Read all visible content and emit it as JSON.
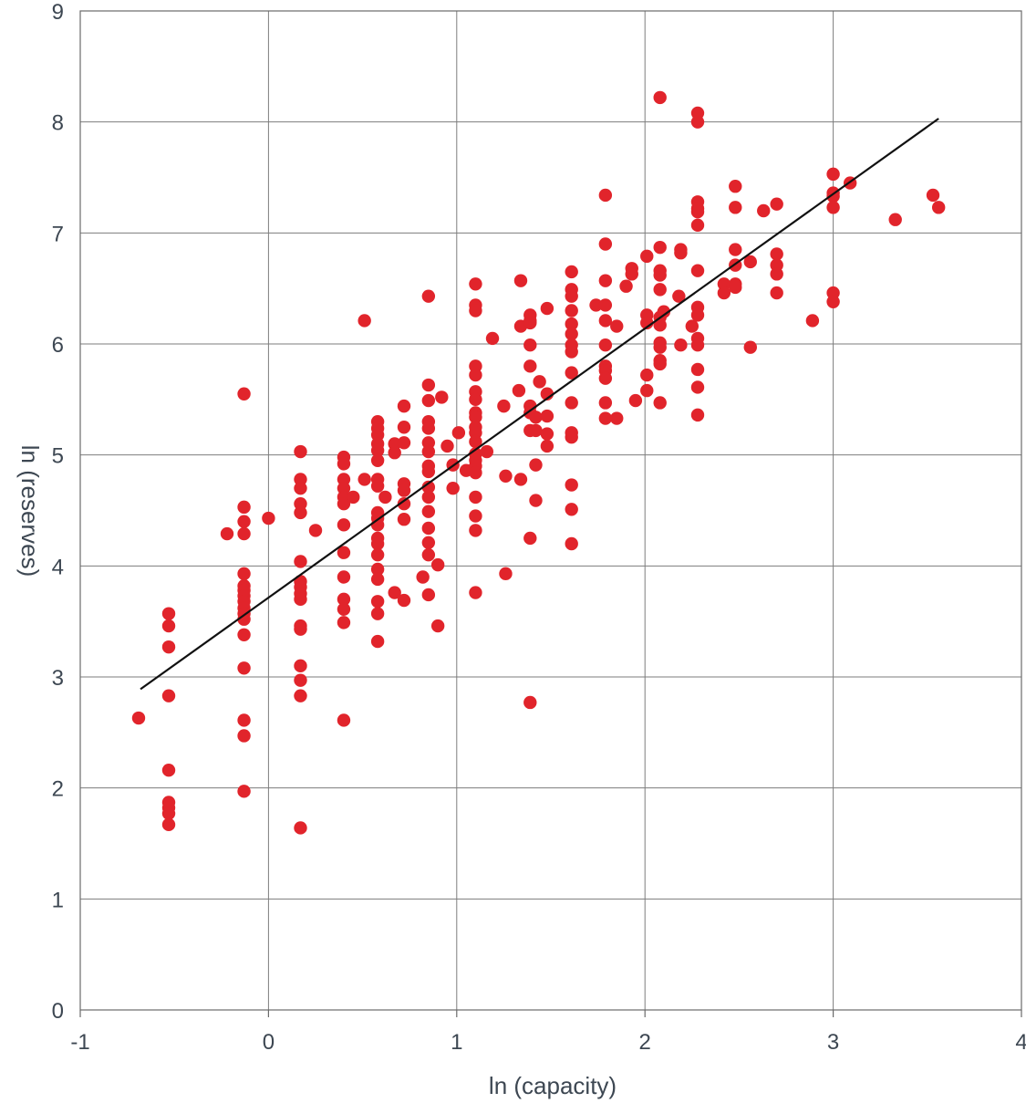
{
  "chart_data": {
    "type": "scatter",
    "xlabel": "ln (capacity)",
    "ylabel": "ln (reserves)",
    "xlim": [
      -1,
      4
    ],
    "ylim": [
      0,
      9
    ],
    "xticks": [
      "-1",
      "0",
      "1",
      "2",
      "3",
      "4"
    ],
    "yticks": [
      "0",
      "1",
      "2",
      "3",
      "4",
      "5",
      "6",
      "7",
      "8",
      "9"
    ],
    "grid": true,
    "legend": "none",
    "colors": {
      "points": "#e1242b",
      "fit_line": "#111111",
      "grid": "#7d7d7d"
    },
    "fit_line": {
      "x": [
        -0.68,
        3.56
      ],
      "y": [
        2.89,
        8.03
      ]
    },
    "points": [
      [
        -0.69,
        2.63
      ],
      [
        -0.53,
        3.57
      ],
      [
        -0.53,
        3.46
      ],
      [
        -0.53,
        3.27
      ],
      [
        -0.53,
        2.83
      ],
      [
        -0.53,
        2.16
      ],
      [
        -0.53,
        1.87
      ],
      [
        -0.53,
        1.82
      ],
      [
        -0.53,
        1.77
      ],
      [
        -0.53,
        1.67
      ],
      [
        -0.22,
        4.29
      ],
      [
        -0.13,
        5.55
      ],
      [
        -0.13,
        4.53
      ],
      [
        -0.13,
        4.4
      ],
      [
        -0.13,
        4.29
      ],
      [
        -0.13,
        3.93
      ],
      [
        -0.13,
        3.82
      ],
      [
        -0.13,
        3.78
      ],
      [
        -0.13,
        3.73
      ],
      [
        -0.13,
        3.68
      ],
      [
        -0.13,
        3.62
      ],
      [
        -0.13,
        3.57
      ],
      [
        -0.13,
        3.52
      ],
      [
        -0.13,
        3.38
      ],
      [
        -0.13,
        3.08
      ],
      [
        -0.13,
        2.61
      ],
      [
        -0.13,
        2.47
      ],
      [
        -0.13,
        1.97
      ],
      [
        0.0,
        4.43
      ],
      [
        0.17,
        5.03
      ],
      [
        0.17,
        4.78
      ],
      [
        0.17,
        4.7
      ],
      [
        0.17,
        4.56
      ],
      [
        0.17,
        4.48
      ],
      [
        0.17,
        4.04
      ],
      [
        0.17,
        3.86
      ],
      [
        0.17,
        3.81
      ],
      [
        0.17,
        3.75
      ],
      [
        0.17,
        3.7
      ],
      [
        0.17,
        3.46
      ],
      [
        0.17,
        3.43
      ],
      [
        0.17,
        3.1
      ],
      [
        0.17,
        2.97
      ],
      [
        0.17,
        2.83
      ],
      [
        0.17,
        1.64
      ],
      [
        0.25,
        4.32
      ],
      [
        0.4,
        4.98
      ],
      [
        0.4,
        4.92
      ],
      [
        0.4,
        4.78
      ],
      [
        0.4,
        4.7
      ],
      [
        0.4,
        4.62
      ],
      [
        0.4,
        4.56
      ],
      [
        0.4,
        4.37
      ],
      [
        0.4,
        4.12
      ],
      [
        0.4,
        3.9
      ],
      [
        0.4,
        3.7
      ],
      [
        0.4,
        3.61
      ],
      [
        0.4,
        3.49
      ],
      [
        0.4,
        2.61
      ],
      [
        0.45,
        4.62
      ],
      [
        0.51,
        4.78
      ],
      [
        0.51,
        6.21
      ],
      [
        0.58,
        5.3
      ],
      [
        0.58,
        5.24
      ],
      [
        0.58,
        5.18
      ],
      [
        0.58,
        5.1
      ],
      [
        0.58,
        5.04
      ],
      [
        0.58,
        4.95
      ],
      [
        0.58,
        4.78
      ],
      [
        0.58,
        4.72
      ],
      [
        0.58,
        4.48
      ],
      [
        0.58,
        4.43
      ],
      [
        0.58,
        4.37
      ],
      [
        0.58,
        4.25
      ],
      [
        0.58,
        4.2
      ],
      [
        0.58,
        4.1
      ],
      [
        0.58,
        3.97
      ],
      [
        0.58,
        3.88
      ],
      [
        0.58,
        3.68
      ],
      [
        0.58,
        3.57
      ],
      [
        0.58,
        3.32
      ],
      [
        0.62,
        4.62
      ],
      [
        0.67,
        5.1
      ],
      [
        0.67,
        5.02
      ],
      [
        0.67,
        3.76
      ],
      [
        0.72,
        5.44
      ],
      [
        0.72,
        5.25
      ],
      [
        0.72,
        5.11
      ],
      [
        0.72,
        4.74
      ],
      [
        0.72,
        4.68
      ],
      [
        0.72,
        4.56
      ],
      [
        0.72,
        4.42
      ],
      [
        0.72,
        3.69
      ],
      [
        0.82,
        3.9
      ],
      [
        0.85,
        6.43
      ],
      [
        0.85,
        5.63
      ],
      [
        0.85,
        5.49
      ],
      [
        0.85,
        5.3
      ],
      [
        0.85,
        5.24
      ],
      [
        0.85,
        5.11
      ],
      [
        0.85,
        5.03
      ],
      [
        0.85,
        4.9
      ],
      [
        0.85,
        4.85
      ],
      [
        0.85,
        4.71
      ],
      [
        0.85,
        4.62
      ],
      [
        0.85,
        4.49
      ],
      [
        0.85,
        4.34
      ],
      [
        0.85,
        4.21
      ],
      [
        0.85,
        4.1
      ],
      [
        0.85,
        3.74
      ],
      [
        0.9,
        3.46
      ],
      [
        0.9,
        4.01
      ],
      [
        0.92,
        5.52
      ],
      [
        0.95,
        5.08
      ],
      [
        0.98,
        4.91
      ],
      [
        0.98,
        4.7
      ],
      [
        1.01,
        5.2
      ],
      [
        1.05,
        4.86
      ],
      [
        1.1,
        6.54
      ],
      [
        1.1,
        6.35
      ],
      [
        1.1,
        6.3
      ],
      [
        1.1,
        5.8
      ],
      [
        1.1,
        5.72
      ],
      [
        1.1,
        5.57
      ],
      [
        1.1,
        5.5
      ],
      [
        1.1,
        5.38
      ],
      [
        1.1,
        5.34
      ],
      [
        1.1,
        5.25
      ],
      [
        1.1,
        5.2
      ],
      [
        1.1,
        5.12
      ],
      [
        1.1,
        5.01
      ],
      [
        1.1,
        4.95
      ],
      [
        1.1,
        4.9
      ],
      [
        1.1,
        4.84
      ],
      [
        1.1,
        4.62
      ],
      [
        1.1,
        4.45
      ],
      [
        1.1,
        4.32
      ],
      [
        1.1,
        3.76
      ],
      [
        1.16,
        5.03
      ],
      [
        1.19,
        6.05
      ],
      [
        1.25,
        5.44
      ],
      [
        1.26,
        4.81
      ],
      [
        1.26,
        3.93
      ],
      [
        1.33,
        5.58
      ],
      [
        1.34,
        6.57
      ],
      [
        1.34,
        6.16
      ],
      [
        1.34,
        4.78
      ],
      [
        1.39,
        6.26
      ],
      [
        1.39,
        6.21
      ],
      [
        1.39,
        6.19
      ],
      [
        1.39,
        5.99
      ],
      [
        1.39,
        5.8
      ],
      [
        1.39,
        5.44
      ],
      [
        1.39,
        5.38
      ],
      [
        1.39,
        5.22
      ],
      [
        1.39,
        4.25
      ],
      [
        1.39,
        2.77
      ],
      [
        1.42,
        5.34
      ],
      [
        1.42,
        5.22
      ],
      [
        1.42,
        4.91
      ],
      [
        1.42,
        4.59
      ],
      [
        1.44,
        5.66
      ],
      [
        1.48,
        5.55
      ],
      [
        1.48,
        5.35
      ],
      [
        1.48,
        5.19
      ],
      [
        1.48,
        5.08
      ],
      [
        1.48,
        6.32
      ],
      [
        1.61,
        6.65
      ],
      [
        1.61,
        6.49
      ],
      [
        1.61,
        6.43
      ],
      [
        1.61,
        6.3
      ],
      [
        1.61,
        6.18
      ],
      [
        1.61,
        6.09
      ],
      [
        1.61,
        5.99
      ],
      [
        1.61,
        5.93
      ],
      [
        1.61,
        5.74
      ],
      [
        1.61,
        5.47
      ],
      [
        1.61,
        5.2
      ],
      [
        1.61,
        5.16
      ],
      [
        1.61,
        4.73
      ],
      [
        1.61,
        4.51
      ],
      [
        1.61,
        4.2
      ],
      [
        1.74,
        6.35
      ],
      [
        1.79,
        7.34
      ],
      [
        1.79,
        6.9
      ],
      [
        1.79,
        6.57
      ],
      [
        1.79,
        6.35
      ],
      [
        1.79,
        6.21
      ],
      [
        1.79,
        5.99
      ],
      [
        1.79,
        5.8
      ],
      [
        1.79,
        5.76
      ],
      [
        1.79,
        5.69
      ],
      [
        1.79,
        5.47
      ],
      [
        1.79,
        5.33
      ],
      [
        1.85,
        6.16
      ],
      [
        1.85,
        5.33
      ],
      [
        1.9,
        6.52
      ],
      [
        1.93,
        6.68
      ],
      [
        1.93,
        6.63
      ],
      [
        1.95,
        5.49
      ],
      [
        2.01,
        6.79
      ],
      [
        2.01,
        6.26
      ],
      [
        2.01,
        6.19
      ],
      [
        2.01,
        5.72
      ],
      [
        2.01,
        5.58
      ],
      [
        2.08,
        8.22
      ],
      [
        2.08,
        6.87
      ],
      [
        2.08,
        6.66
      ],
      [
        2.08,
        6.62
      ],
      [
        2.08,
        6.49
      ],
      [
        2.08,
        6.24
      ],
      [
        2.08,
        6.17
      ],
      [
        2.08,
        6.01
      ],
      [
        2.08,
        5.97
      ],
      [
        2.08,
        5.85
      ],
      [
        2.08,
        5.82
      ],
      [
        2.08,
        5.47
      ],
      [
        2.1,
        6.29
      ],
      [
        2.18,
        6.43
      ],
      [
        2.19,
        6.85
      ],
      [
        2.19,
        6.82
      ],
      [
        2.19,
        5.99
      ],
      [
        2.25,
        6.16
      ],
      [
        2.28,
        8.08
      ],
      [
        2.28,
        8.0
      ],
      [
        2.28,
        7.28
      ],
      [
        2.28,
        7.22
      ],
      [
        2.28,
        7.19
      ],
      [
        2.28,
        7.07
      ],
      [
        2.28,
        6.66
      ],
      [
        2.28,
        6.33
      ],
      [
        2.28,
        6.26
      ],
      [
        2.28,
        6.05
      ],
      [
        2.28,
        5.99
      ],
      [
        2.28,
        5.77
      ],
      [
        2.28,
        5.61
      ],
      [
        2.28,
        5.36
      ],
      [
        2.42,
        6.54
      ],
      [
        2.42,
        6.46
      ],
      [
        2.48,
        7.42
      ],
      [
        2.48,
        7.23
      ],
      [
        2.48,
        6.85
      ],
      [
        2.48,
        6.71
      ],
      [
        2.48,
        6.54
      ],
      [
        2.48,
        6.51
      ],
      [
        2.56,
        6.74
      ],
      [
        2.56,
        5.97
      ],
      [
        2.63,
        7.2
      ],
      [
        2.7,
        7.26
      ],
      [
        2.7,
        6.81
      ],
      [
        2.7,
        6.71
      ],
      [
        2.7,
        6.63
      ],
      [
        2.7,
        6.46
      ],
      [
        2.89,
        6.21
      ],
      [
        3.0,
        7.53
      ],
      [
        3.0,
        7.36
      ],
      [
        3.0,
        7.33
      ],
      [
        3.0,
        7.23
      ],
      [
        3.0,
        6.46
      ],
      [
        3.0,
        6.38
      ],
      [
        3.09,
        7.45
      ],
      [
        3.33,
        7.12
      ],
      [
        3.53,
        7.34
      ],
      [
        3.56,
        7.23
      ]
    ]
  }
}
